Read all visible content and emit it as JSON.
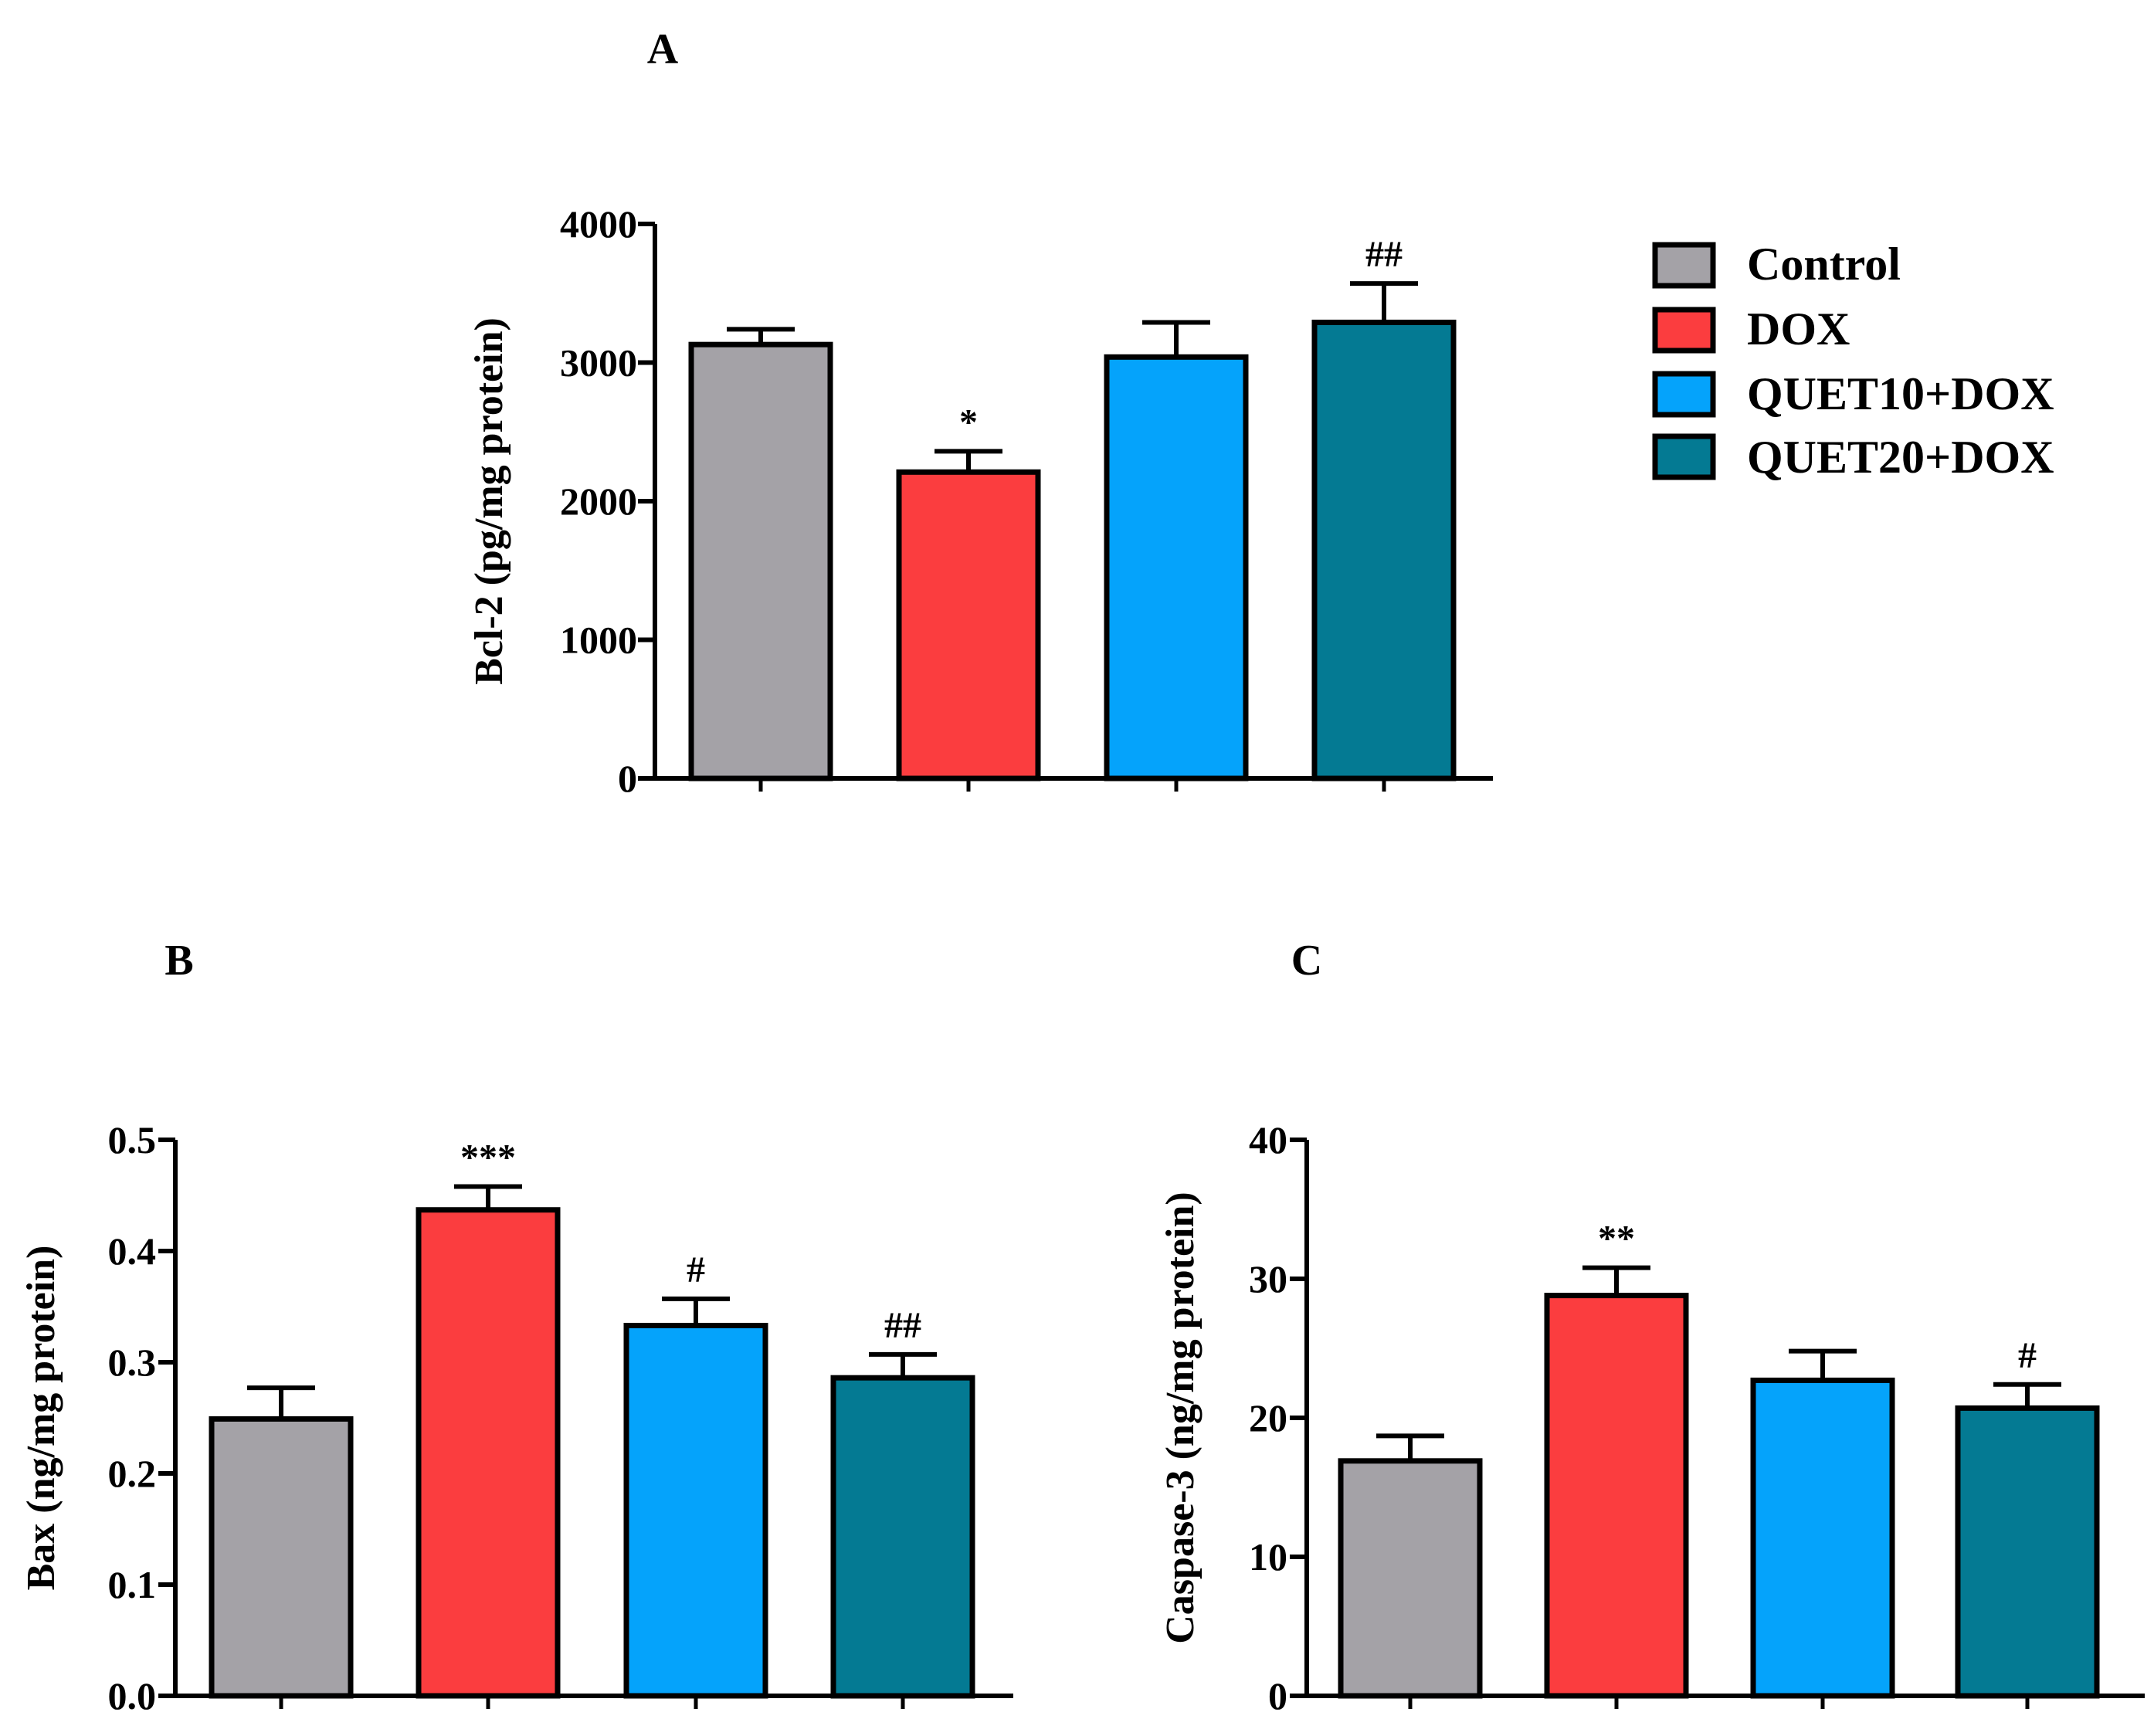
{
  "colors": {
    "Control": "#a4a2a7",
    "DOX": "#fb3d3f",
    "QUET10+DOX": "#05a3fb",
    "QUET20+DOX": "#047a93",
    "axis": "#000000"
  },
  "legend": {
    "entries": [
      "Control",
      "DOX",
      "QUET10+DOX",
      "QUET20+DOX"
    ]
  },
  "chart_data": [
    {
      "panel": "A",
      "type": "bar",
      "title": "A",
      "ylabel": "Bcl-2 (pg/mg protein)",
      "xlabel": "",
      "categories": [
        "Control",
        "DOX",
        "QUET10+DOX",
        "QUET20+DOX"
      ],
      "values": [
        3130,
        2210,
        3040,
        3290
      ],
      "errors": [
        110,
        150,
        250,
        280
      ],
      "significance": [
        "",
        "*",
        "",
        "##"
      ],
      "ylim": [
        0,
        4000
      ],
      "yticks": [
        0,
        1000,
        2000,
        3000,
        4000
      ],
      "ytick_labels": [
        "0",
        "1000",
        "2000",
        "3000",
        "4000"
      ]
    },
    {
      "panel": "B",
      "type": "bar",
      "title": "B",
      "ylabel": "Bax (ng/mg protein)",
      "xlabel": "",
      "categories": [
        "Control",
        "DOX",
        "QUET10+DOX",
        "QUET20+DOX"
      ],
      "values": [
        0.249,
        0.437,
        0.333,
        0.286
      ],
      "errors": [
        0.028,
        0.021,
        0.024,
        0.021
      ],
      "significance": [
        "",
        "***",
        "#",
        "##"
      ],
      "ylim": [
        0,
        0.5
      ],
      "yticks": [
        0,
        0.1,
        0.2,
        0.3,
        0.4,
        0.5
      ],
      "ytick_labels": [
        "0.0",
        "0.1",
        "0.2",
        "0.3",
        "0.4",
        "0.5"
      ]
    },
    {
      "panel": "C",
      "type": "bar",
      "title": "C",
      "ylabel": "Caspase-3 (ng/mg protein)",
      "xlabel": "",
      "categories": [
        "Control",
        "DOX",
        "QUET10+DOX",
        "QUET20+DOX"
      ],
      "values": [
        16.9,
        28.8,
        22.7,
        20.7
      ],
      "errors": [
        1.8,
        2.0,
        2.1,
        1.7
      ],
      "significance": [
        "",
        "**",
        "",
        "#"
      ],
      "ylim": [
        0,
        40
      ],
      "yticks": [
        0,
        10,
        20,
        30,
        40
      ],
      "ytick_labels": [
        "0",
        "10",
        "20",
        "30",
        "40"
      ]
    }
  ]
}
